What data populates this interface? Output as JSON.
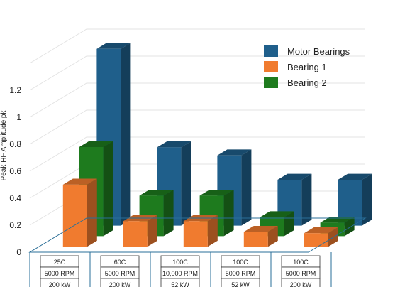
{
  "chart_data": {
    "type": "bar",
    "chart_style": "3d-clustered-column",
    "ylabel": "Peak HF Amplitude pk",
    "ylim": [
      0,
      1.4
    ],
    "y_ticks": [
      "0",
      "0.2",
      "0.4",
      "0.6",
      "0.8",
      "1",
      "1.2"
    ],
    "grid": true,
    "legend_position": "top-right",
    "categories": [
      [
        "25C",
        "5000 RPM",
        "200 kW"
      ],
      [
        "60C",
        "5000 RPM",
        "200 kW"
      ],
      [
        "100C",
        "10,000 RPM",
        "52 kW"
      ],
      [
        "100C",
        "5000 RPM",
        "52 kW"
      ],
      [
        "100C",
        "5000 RPM",
        "200 kW"
      ]
    ],
    "series": [
      {
        "name": "Motor Bearings",
        "color": "#1f5f8b",
        "values": [
          1.31,
          0.58,
          0.52,
          0.34,
          0.34
        ]
      },
      {
        "name": "Bearing 1",
        "color": "#f07b2f",
        "values": [
          0.46,
          0.19,
          0.19,
          0.11,
          0.1
        ]
      },
      {
        "name": "Bearing 2",
        "color": "#1e7b1e",
        "values": [
          0.66,
          0.3,
          0.3,
          0.14,
          0.1
        ]
      }
    ]
  }
}
